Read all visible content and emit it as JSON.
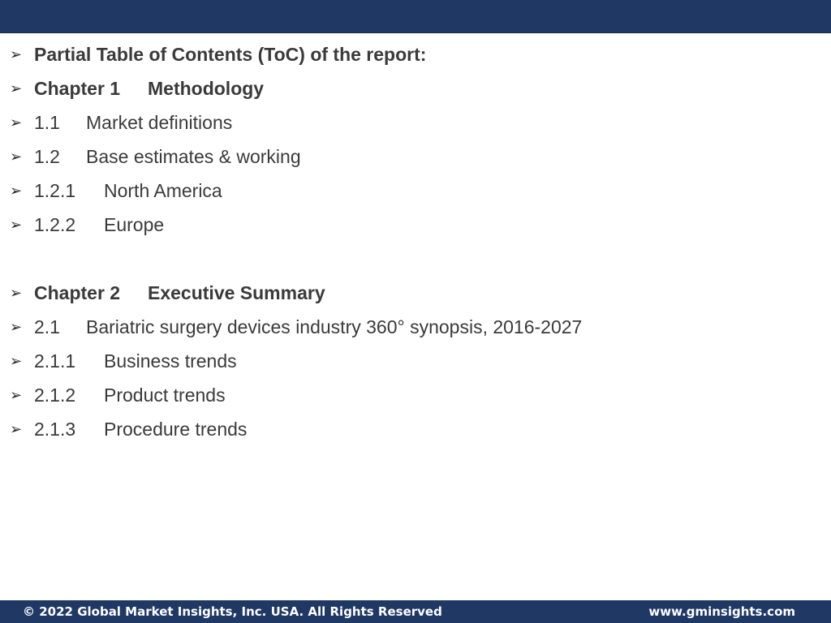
{
  "toc": {
    "items": [
      {
        "bullet": "➢",
        "number": "",
        "label": "Partial Table of Contents (ToC) of the report:",
        "bold": true
      },
      {
        "bullet": "➢",
        "number": "Chapter 1",
        "label": "Methodology",
        "bold": true
      },
      {
        "bullet": "➢",
        "number": "1.1",
        "label": "Market definitions",
        "bold": false
      },
      {
        "bullet": "➢",
        "number": "1.2",
        "label": "Base estimates & working",
        "bold": false
      },
      {
        "bullet": "➢",
        "number": "1.2.1",
        "label": "North America",
        "bold": false
      },
      {
        "bullet": "➢",
        "number": "1.2.2",
        "label": "Europe",
        "bold": false
      },
      {
        "bullet": "➢",
        "number": "Chapter 2",
        "label": "Executive Summary",
        "bold": true
      },
      {
        "bullet": "➢",
        "number": "2.1",
        "label": "Bariatric surgery devices industry 360° synopsis, 2016-2027",
        "bold": false
      },
      {
        "bullet": "➢",
        "number": "2.1.1",
        "label": "Business trends",
        "bold": false
      },
      {
        "bullet": "➢",
        "number": "2.1.2",
        "label": "Product trends",
        "bold": false
      },
      {
        "bullet": "➢",
        "number": "2.1.3",
        "label": "Procedure trends",
        "bold": false
      }
    ]
  },
  "footer": {
    "copyright": "© 2022 Global Market Insights, Inc. USA. All Rights Reserved",
    "website": "www.gminsights.com"
  },
  "colors": {
    "header_bar": "#1f3864",
    "footer_bar": "#1f3864",
    "text": "#3a3a3a"
  }
}
